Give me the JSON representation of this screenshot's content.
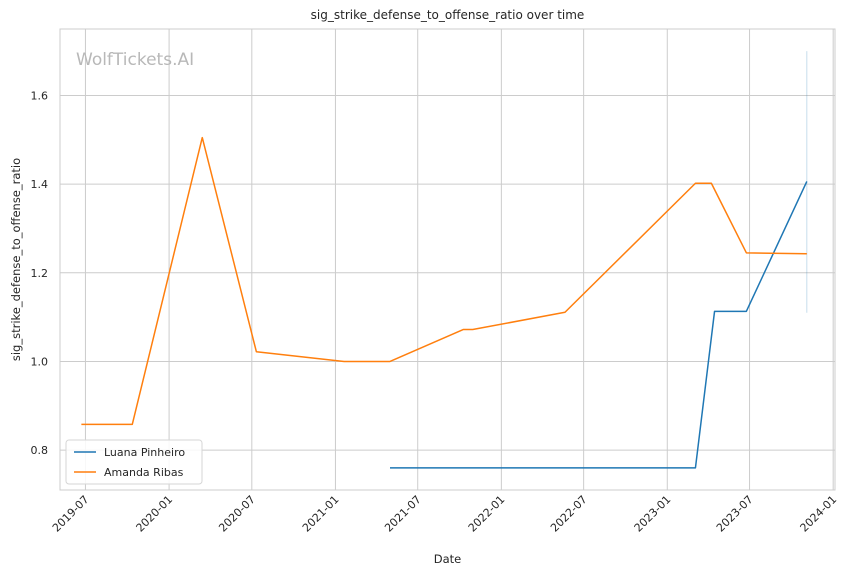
{
  "chart_data": {
    "type": "line",
    "title": "sig_strike_defense_to_offense_ratio over time",
    "xlabel": "Date",
    "ylabel": "sig_strike_defense_to_offense_ratio",
    "watermark": "WolfTickets.AI",
    "xlim": [
      "2019-05-06",
      "2024-01-05"
    ],
    "ylim": [
      0.71,
      1.75
    ],
    "x_ticks": [
      "2019-07",
      "2020-01",
      "2020-07",
      "2021-01",
      "2021-07",
      "2022-01",
      "2022-07",
      "2023-01",
      "2023-07",
      "2024-01"
    ],
    "y_ticks": [
      0.8,
      1.0,
      1.2,
      1.4,
      1.6
    ],
    "grid": true,
    "legend_position": "lower-left",
    "series": [
      {
        "name": "Luana Pinheiro",
        "color": "#1f77b4",
        "points": [
          {
            "x": "2021-05-01",
            "y": 0.76
          },
          {
            "x": "2023-03-04",
            "y": 0.76
          },
          {
            "x": "2023-04-15",
            "y": 1.113
          },
          {
            "x": "2023-06-24",
            "y": 1.113
          },
          {
            "x": "2023-11-04",
            "y": 1.406
          }
        ]
      },
      {
        "name": "Amanda Ribas",
        "color": "#ff7f0e",
        "points": [
          {
            "x": "2019-06-22",
            "y": 0.858
          },
          {
            "x": "2019-10-12",
            "y": 0.858
          },
          {
            "x": "2020-03-14",
            "y": 1.505
          },
          {
            "x": "2020-07-11",
            "y": 1.022
          },
          {
            "x": "2021-01-20",
            "y": 1.0
          },
          {
            "x": "2021-05-01",
            "y": 1.0
          },
          {
            "x": "2021-10-09",
            "y": 1.072
          },
          {
            "x": "2021-10-30",
            "y": 1.072
          },
          {
            "x": "2022-05-21",
            "y": 1.111
          },
          {
            "x": "2023-03-04",
            "y": 1.402
          },
          {
            "x": "2023-04-08",
            "y": 1.402
          },
          {
            "x": "2023-06-24",
            "y": 1.245
          },
          {
            "x": "2023-11-04",
            "y": 1.243
          }
        ]
      }
    ],
    "error_bar": {
      "x": "2023-11-04",
      "low": 1.11,
      "high": 1.7,
      "color": "#1f77b4"
    }
  }
}
